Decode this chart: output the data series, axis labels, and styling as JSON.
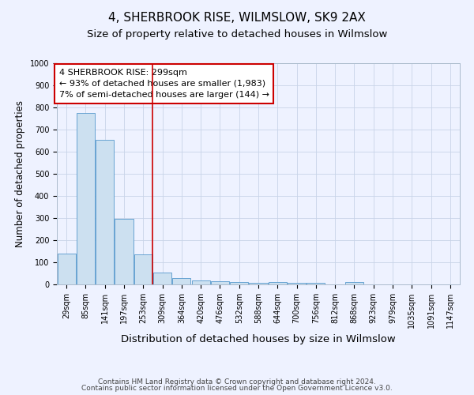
{
  "title": "4, SHERBROOK RISE, WILMSLOW, SK9 2AX",
  "subtitle": "Size of property relative to detached houses in Wilmslow",
  "xlabel": "Distribution of detached houses by size in Wilmslow",
  "ylabel": "Number of detached properties",
  "categories": [
    "29sqm",
    "85sqm",
    "141sqm",
    "197sqm",
    "253sqm",
    "309sqm",
    "364sqm",
    "420sqm",
    "476sqm",
    "532sqm",
    "588sqm",
    "644sqm",
    "700sqm",
    "756sqm",
    "812sqm",
    "868sqm",
    "923sqm",
    "979sqm",
    "1035sqm",
    "1091sqm",
    "1147sqm"
  ],
  "values": [
    140,
    775,
    655,
    295,
    135,
    55,
    30,
    18,
    15,
    10,
    8,
    10,
    8,
    7,
    0,
    12,
    0,
    0,
    0,
    0,
    0
  ],
  "bar_color": "#cce0f0",
  "bar_edge_color": "#5599cc",
  "red_line_index": 5,
  "annotation_line1": "4 SHERBROOK RISE: 299sqm",
  "annotation_line2": "← 93% of detached houses are smaller (1,983)",
  "annotation_line3": "7% of semi-detached houses are larger (144) →",
  "annotation_box_color": "#ffffff",
  "annotation_box_edge_color": "#cc0000",
  "red_line_color": "#cc0000",
  "ylim": [
    0,
    1000
  ],
  "yticks": [
    0,
    100,
    200,
    300,
    400,
    500,
    600,
    700,
    800,
    900,
    1000
  ],
  "footer1": "Contains HM Land Registry data © Crown copyright and database right 2024.",
  "footer2": "Contains public sector information licensed under the Open Government Licence v3.0.",
  "background_color": "#eef2ff",
  "grid_color": "#c8d4e8",
  "title_fontsize": 11,
  "subtitle_fontsize": 9.5,
  "xlabel_fontsize": 9.5,
  "ylabel_fontsize": 8.5,
  "tick_fontsize": 7,
  "footer_fontsize": 6.5,
  "annotation_fontsize": 8
}
